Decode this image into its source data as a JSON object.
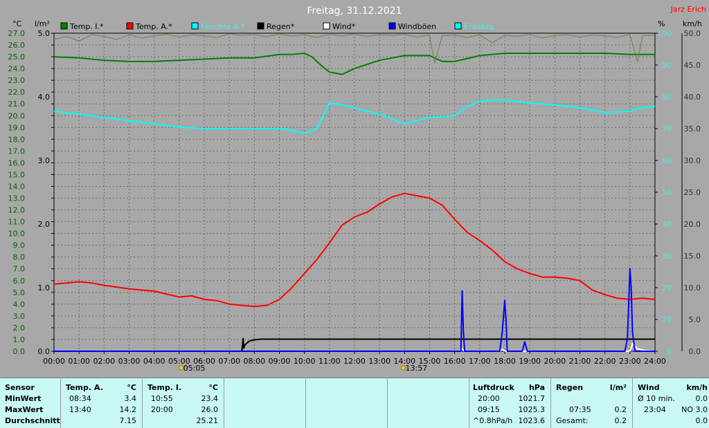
{
  "chart_data": {
    "type": "line",
    "title": "Freitag, 31.12.2021",
    "author": "Jarz Erich",
    "left_axis_unit": "°C",
    "rain_axis_unit": "l/m²",
    "humidity_axis_unit": "%",
    "wind_axis_unit": "km/h",
    "temp_ticks": [
      "27.0",
      "26.0",
      "25.0",
      "24.0",
      "23.0",
      "22.0",
      "21.0",
      "20.0",
      "19.0",
      "18.0",
      "17.0",
      "16.0",
      "15.0",
      "14.0",
      "13.0",
      "12.0",
      "11.0",
      "10.0",
      "9.0",
      "8.0",
      "7.0",
      "6.0",
      "5.0",
      "4.0",
      "3.0",
      "2.0",
      "1.0",
      "0.0"
    ],
    "temp_ylim": [
      0,
      27
    ],
    "rain_ticks": [
      "5.0",
      "4.0",
      "3.0",
      "2.0",
      "1.0",
      "0.0"
    ],
    "rain_ylim": [
      0,
      5
    ],
    "humidity_ticks": [
      "100",
      "90",
      "80",
      "70",
      "60",
      "50",
      "40",
      "30",
      "20",
      "10",
      "0"
    ],
    "humidity_ylim": [
      0,
      100
    ],
    "wind_ticks": [
      "50.0",
      "45.0",
      "40.0",
      "35.0",
      "30.0",
      "25.0",
      "20.0",
      "15.0",
      "10.0",
      "5.0",
      "0.0"
    ],
    "wind_ylim": [
      0,
      50
    ],
    "x_ticks": [
      "00:00",
      "01:00",
      "02:00",
      "03:00",
      "04:00",
      "05:00",
      "06:00",
      "07:00",
      "08:00",
      "09:00",
      "10:00",
      "11:00",
      "12:00",
      "13:00",
      "14:00",
      "15:00",
      "16:00",
      "17:00",
      "18:00",
      "19:00",
      "20:00",
      "21:00",
      "22:00",
      "23:00",
      "24:00"
    ],
    "xlim": [
      0,
      24
    ],
    "sun_markers": [
      {
        "x": 5.08,
        "label": "05:05"
      },
      {
        "x": 13.95,
        "label": "13:57"
      }
    ],
    "legend": [
      {
        "name": "Temp. I.*",
        "color": "#008000"
      },
      {
        "name": "Temp. A.*",
        "color": "#ff0000"
      },
      {
        "name": "Feuchte A.*",
        "color": "#00ffff"
      },
      {
        "name": "Regen*",
        "color": "#000000"
      },
      {
        "name": "Wind*",
        "color": "#ffffff"
      },
      {
        "name": "Windböen",
        "color": "#0000ff"
      },
      {
        "name": "Erdabrg.",
        "color": "#00ffff"
      }
    ],
    "grid": true,
    "series": [
      {
        "name": "Temp. I.*",
        "axis": "temp",
        "color": "#008000",
        "x": [
          0,
          1,
          2,
          3,
          4,
          5,
          6,
          7,
          8,
          9,
          9.5,
          10,
          10.3,
          10.7,
          11,
          11.5,
          12,
          13,
          14,
          15,
          15.5,
          16,
          17,
          18,
          19,
          20,
          21,
          22,
          23,
          24
        ],
        "y": [
          25.0,
          24.9,
          24.7,
          24.6,
          24.6,
          24.7,
          24.8,
          24.9,
          24.9,
          25.2,
          25.2,
          25.3,
          25.0,
          24.2,
          23.7,
          23.5,
          24.0,
          24.7,
          25.1,
          25.1,
          24.6,
          24.6,
          25.1,
          25.3,
          25.3,
          25.3,
          25.3,
          25.3,
          25.2,
          25.2
        ]
      },
      {
        "name": "Temp. A.*",
        "axis": "temp",
        "color": "#ff0000",
        "x": [
          0,
          0.5,
          1,
          1.5,
          2,
          3,
          4,
          5,
          5.5,
          6,
          6.5,
          7,
          7.5,
          8,
          8.5,
          9,
          9.5,
          10,
          10.5,
          11,
          11.5,
          12,
          12.5,
          13,
          13.5,
          14,
          14.5,
          15,
          15.5,
          16,
          16.5,
          17,
          17.5,
          18,
          18.5,
          19,
          19.5,
          20,
          20.5,
          21,
          21.5,
          22,
          22.5,
          23,
          23.5,
          24
        ],
        "y": [
          5.7,
          5.8,
          5.9,
          5.8,
          5.6,
          5.3,
          5.1,
          4.6,
          4.7,
          4.4,
          4.3,
          4.0,
          3.9,
          3.8,
          3.9,
          4.4,
          5.4,
          6.6,
          7.8,
          9.2,
          10.7,
          11.4,
          11.8,
          12.5,
          13.1,
          13.4,
          13.2,
          13.0,
          12.4,
          11.2,
          10.1,
          9.4,
          8.6,
          7.6,
          7.0,
          6.6,
          6.3,
          6.3,
          6.2,
          6.0,
          5.2,
          4.8,
          4.5,
          4.4,
          4.5,
          4.4
        ]
      },
      {
        "name": "Feuchte A.*",
        "axis": "humidity",
        "color": "#00ffff",
        "x": [
          0,
          1,
          2,
          3,
          4,
          5,
          6,
          7,
          8,
          9,
          9.5,
          10,
          10.5,
          11,
          11.5,
          12,
          13,
          14,
          15,
          16,
          16.5,
          17,
          17.5,
          18,
          19,
          20,
          21,
          22,
          23,
          23.5,
          24
        ],
        "y": [
          75.5,
          74.5,
          73.5,
          72.5,
          71.5,
          70.5,
          70.0,
          70.0,
          70.0,
          70.0,
          69.5,
          68.5,
          70.0,
          78.0,
          77.5,
          76.5,
          74.5,
          71.5,
          73.5,
          74.0,
          77.0,
          78.5,
          79.0,
          79.0,
          78.0,
          77.5,
          76.5,
          75.0,
          75.5,
          76.5,
          77.0
        ]
      },
      {
        "name": "Regen*",
        "axis": "rain",
        "color": "#000000",
        "x": [
          0,
          7.5,
          7.55,
          7.58,
          7.62,
          7.8,
          8,
          8.3,
          9,
          24
        ],
        "y": [
          0,
          0,
          0.2,
          0.05,
          0.1,
          0.16,
          0.18,
          0.19,
          0.19,
          0.19
        ]
      },
      {
        "name": "Wind*",
        "axis": "wind",
        "color": "#ffffff",
        "x": [
          0,
          16.2,
          16.3,
          16.4,
          17.8,
          17.9,
          18.0,
          23.0,
          23.1,
          23.3,
          23.6,
          24
        ],
        "y": [
          0,
          0,
          0.4,
          0,
          0,
          0.3,
          0,
          0,
          1.2,
          0.4,
          0.1,
          0
        ]
      },
      {
        "name": "Windböen",
        "axis": "wind",
        "color": "#0000ff",
        "x": [
          0,
          16.2,
          16.25,
          16.3,
          16.35,
          16.4,
          17.8,
          17.9,
          18.0,
          18.05,
          18.1,
          18.7,
          18.8,
          18.9,
          22.8,
          22.9,
          23.0,
          23.05,
          23.1,
          23.2,
          24
        ],
        "y": [
          0,
          0,
          0,
          9.5,
          3.0,
          0,
          0,
          3.0,
          8.0,
          5.0,
          0,
          0,
          1.5,
          0,
          0,
          2.0,
          13.0,
          10.0,
          3.0,
          0,
          0
        ]
      },
      {
        "name": "Erdabrg.",
        "axis": "humidity",
        "color": "#7a7a50",
        "x": [
          0,
          0.5,
          1,
          1.5,
          2,
          2.5,
          3,
          3.5,
          4,
          4.5,
          5,
          5.5,
          6,
          6.5,
          7,
          7.5,
          8,
          8.5,
          9,
          9.5,
          10,
          10.5,
          11,
          11.5,
          12,
          12.5,
          13,
          13.5,
          14,
          14.5,
          15,
          15.2,
          15.5,
          16,
          16.5,
          17,
          17.5,
          18,
          18.5,
          19,
          19.5,
          20,
          20.5,
          21,
          21.5,
          22,
          22.5,
          23,
          23.3,
          23.5,
          24
        ],
        "y": [
          98,
          99,
          97.5,
          99.5,
          99,
          98,
          99.5,
          98.5,
          99.2,
          99.7,
          98.8,
          99.5,
          99.2,
          98.6,
          99.8,
          99.3,
          99.6,
          98.9,
          99.7,
          99.1,
          99.5,
          98.7,
          99.6,
          99.2,
          99.7,
          99.0,
          99.5,
          99.3,
          99.6,
          98.8,
          99.4,
          90.5,
          99.2,
          99.4,
          98.6,
          99.5,
          97.0,
          99.3,
          99.0,
          99.6,
          98.5,
          99.3,
          99.5,
          98.8,
          99.4,
          99.2,
          98.7,
          99.6,
          91.0,
          99.2,
          99.4
        ]
      }
    ]
  },
  "stats": {
    "sensor": {
      "header": "Sensor",
      "rows": [
        "MinWert",
        "MaxWert",
        "Durchschnitt"
      ]
    },
    "temp_a": {
      "header": "Temp. A.",
      "unit": "°C",
      "min_time": "08:34",
      "min_val": "3.4",
      "max_time": "13:40",
      "max_val": "14.2",
      "avg": "7.15"
    },
    "temp_i": {
      "header": "Temp. I.",
      "unit": "°C",
      "min_time": "10:55",
      "min_val": "23.4",
      "max_time": "20:00",
      "max_val": "26.0",
      "avg": "25.21"
    },
    "luftdruck": {
      "header": "Luftdruck",
      "unit": "hPa",
      "min_time": "20:00",
      "min_val": "1021.7",
      "max_time": "09:15",
      "max_val": "1025.3",
      "avg_label": "^0.8hPa/h",
      "avg": "1023.6"
    },
    "regen": {
      "header": "Regen",
      "unit": "l/m²",
      "max_time": "07:35",
      "max_val": "0.2",
      "total_label": "Gesamt:",
      "total": "0.2"
    },
    "wind": {
      "header": "Wind",
      "unit": "km/h",
      "min_label": "Ø 10 min.",
      "min_val": "0.0",
      "max_time": "23:04",
      "max_val": "NO 3.0",
      "avg": "0.0"
    }
  }
}
